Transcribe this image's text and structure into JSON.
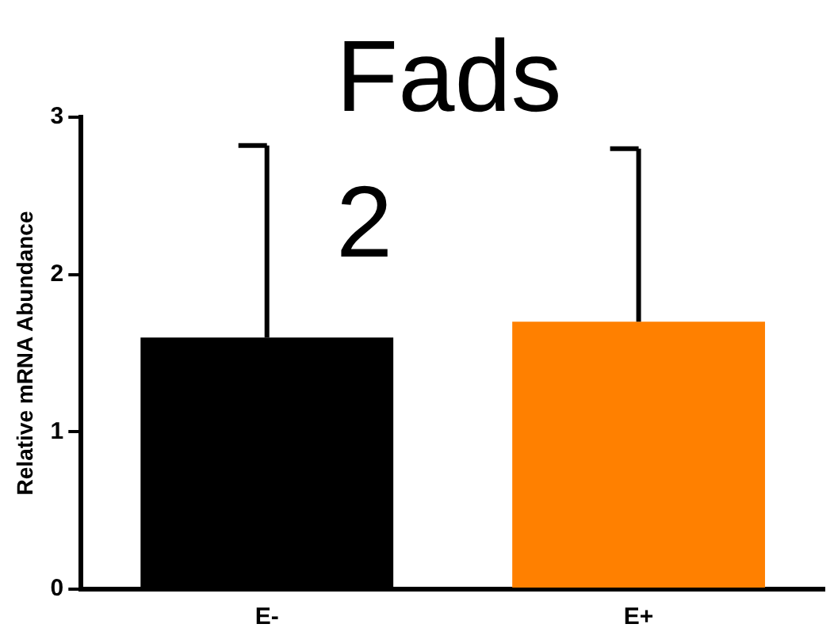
{
  "chart_data": {
    "type": "bar",
    "title": "Fads 2",
    "ylabel": "Relative mRNA Abundance",
    "categories": [
      "E-",
      "E+"
    ],
    "values": [
      1.6,
      1.7
    ],
    "colors": [
      "#000000",
      "#ff8000"
    ],
    "errors": [
      [
        1.6,
        2.82
      ],
      [
        1.7,
        2.8
      ]
    ],
    "ylim": [
      0,
      3
    ],
    "yticks": [
      0,
      1,
      2,
      3
    ],
    "grid": false,
    "legend": false
  }
}
